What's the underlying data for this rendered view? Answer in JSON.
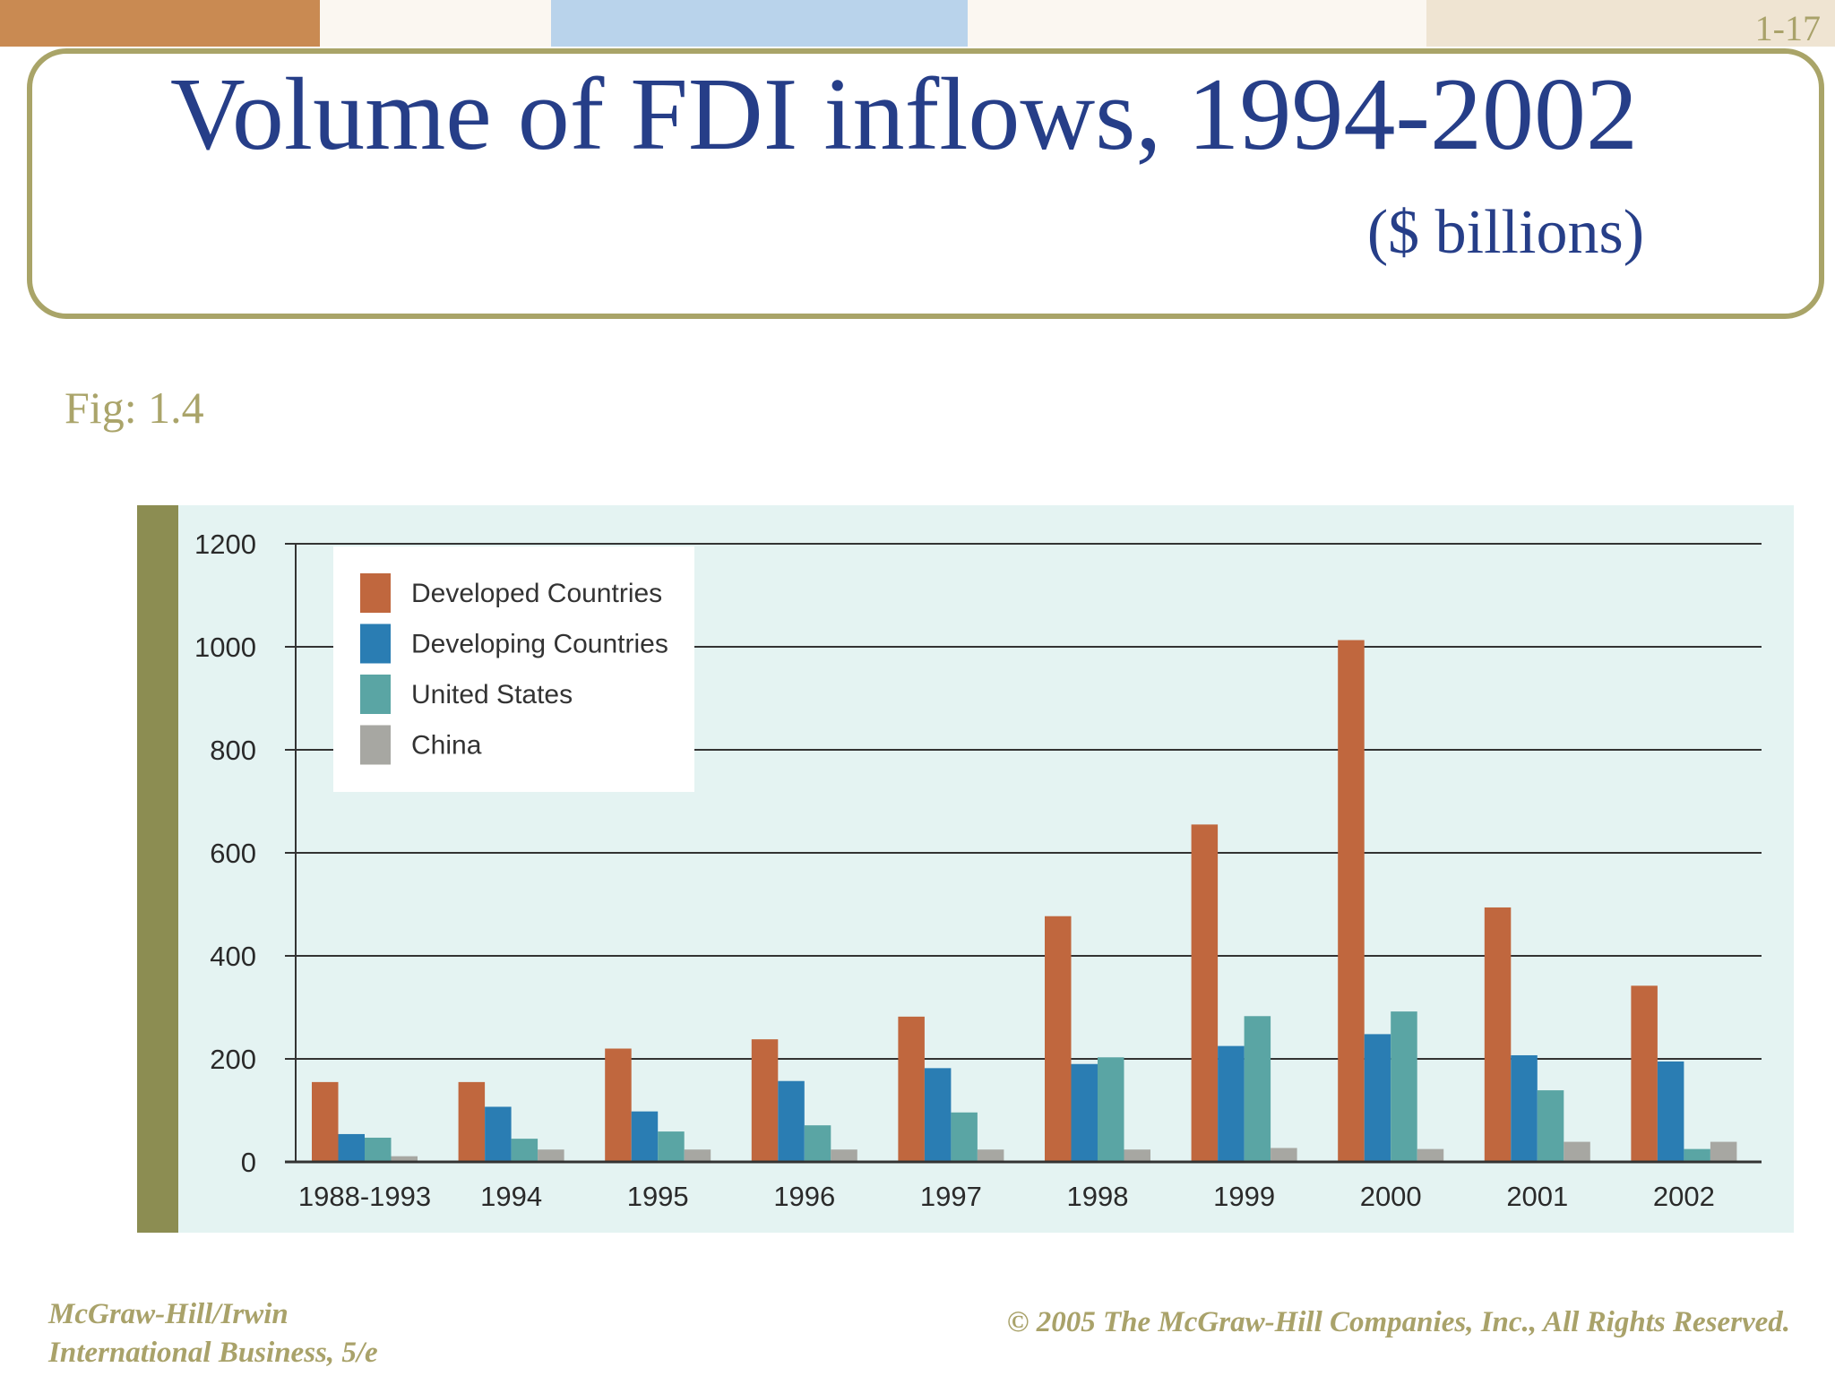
{
  "slide_number": "1-17",
  "title": "Volume of FDI inflows, 1994-2002",
  "subtitle": "($ billions)",
  "fig_label": "Fig: 1.4",
  "footer": {
    "left_line1": "McGraw-Hill/Irwin",
    "left_line2": "International Business, 5/e",
    "right": "© 2005 The McGraw-Hill Companies, Inc., All Rights Reserved."
  },
  "chart_data": {
    "type": "bar",
    "title": "",
    "xlabel": "",
    "ylabel": "",
    "ylim": [
      0,
      1200
    ],
    "yticks": [
      0,
      200,
      400,
      600,
      800,
      1000,
      1200
    ],
    "grid": true,
    "legend_position": "top-left",
    "categories": [
      "1988-1993",
      "1994",
      "1995",
      "1996",
      "1997",
      "1998",
      "1999",
      "2000",
      "2001",
      "2002"
    ],
    "series": [
      {
        "name": "Developed Countries",
        "color": "#c0673e",
        "values": [
          155,
          155,
          220,
          238,
          282,
          477,
          655,
          1013,
          494,
          342
        ]
      },
      {
        "name": "Developing Countries",
        "color": "#2a7db3",
        "values": [
          54,
          107,
          98,
          157,
          182,
          190,
          225,
          248,
          207,
          195
        ]
      },
      {
        "name": "United States",
        "color": "#5aa5a4",
        "values": [
          47,
          45,
          59,
          71,
          96,
          203,
          283,
          292,
          139,
          25
        ]
      },
      {
        "name": "China",
        "color": "#a7a7a2",
        "values": [
          11,
          24,
          24,
          24,
          24,
          24,
          27,
          25,
          39,
          39
        ]
      }
    ]
  }
}
